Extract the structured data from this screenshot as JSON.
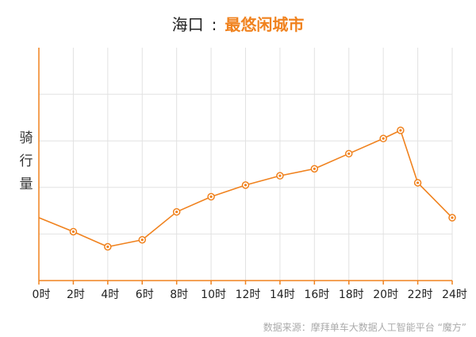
{
  "title": {
    "city": "海口",
    "separator": ":",
    "tag": "最悠闲城市"
  },
  "source": "数据来源：摩拜单车大数据人工智能平台 “魔方”",
  "colors": {
    "accent": "#f0821e",
    "axis": "#f0821e",
    "grid": "#e2e2e2"
  },
  "chart_data": {
    "type": "line",
    "title": "海口：最悠闲城市",
    "xlabel": "",
    "ylabel": "骑行量",
    "x_ticks": [
      "0时",
      "2时",
      "4时",
      "6时",
      "8时",
      "10时",
      "12时",
      "14时",
      "16时",
      "18时",
      "20时",
      "22时",
      "24时"
    ],
    "xlim": [
      0,
      24
    ],
    "ylim": [
      0,
      100
    ],
    "grid": true,
    "series": [
      {
        "name": "",
        "points": [
          [
            0,
            27
          ],
          [
            2,
            21
          ],
          [
            4,
            14.5
          ],
          [
            6,
            17.5
          ],
          [
            8,
            29.5
          ],
          [
            10,
            36
          ],
          [
            12,
            41
          ],
          [
            14,
            45
          ],
          [
            16,
            48
          ],
          [
            18,
            54.5
          ],
          [
            20,
            61
          ],
          [
            21,
            64.5
          ],
          [
            22,
            42
          ],
          [
            24,
            27
          ]
        ],
        "markers": [
          false,
          true,
          true,
          true,
          true,
          true,
          true,
          true,
          true,
          true,
          true,
          true,
          true,
          true
        ]
      }
    ]
  }
}
